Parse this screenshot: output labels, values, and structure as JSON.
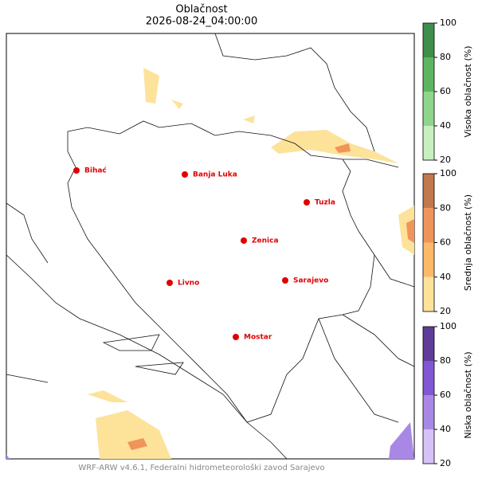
{
  "title": "Oblačnost",
  "subtitle": "2026-08-24_04:00:00",
  "cities": [
    "Bihać",
    "Banja Luka",
    "Tuzla",
    "Zenica",
    "Livno",
    "Sarajevo",
    "Mostar"
  ],
  "colorbars": [
    {
      "label": "Visoka oblačnost (%)",
      "ticks": [
        20,
        40,
        60,
        80,
        100
      ],
      "colors": [
        "#c7efc0",
        "#8fd68a",
        "#5db560",
        "#3f8f4a"
      ]
    },
    {
      "label": "Srednja oblačnost (%)",
      "ticks": [
        20,
        40,
        60,
        80,
        100
      ],
      "colors": [
        "#fde29a",
        "#fbb96a",
        "#f0955a",
        "#c2784d"
      ]
    },
    {
      "label": "Niska oblačnost (%)",
      "ticks": [
        20,
        40,
        60,
        80,
        100
      ],
      "colors": [
        "#d6c2f7",
        "#a988e5",
        "#8257d3",
        "#5e3d99"
      ]
    }
  ],
  "footer": "WRF-ARW v4.6.1, Federalni hidrometeorološki zavod Sarajevo"
}
